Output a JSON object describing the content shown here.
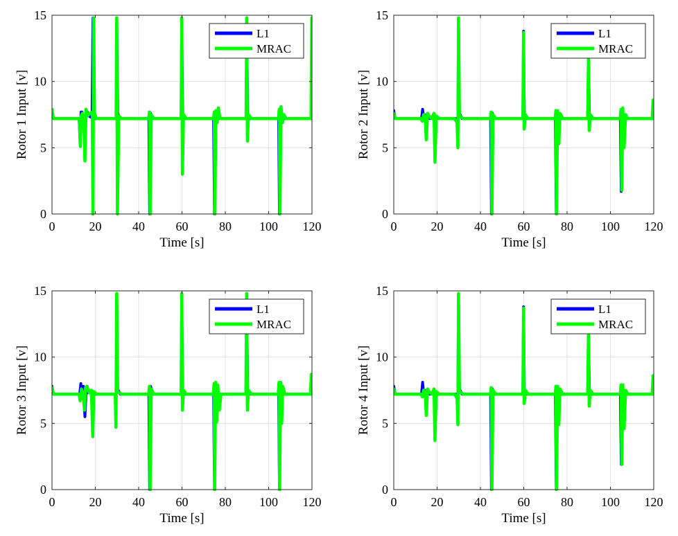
{
  "chart_data": [
    {
      "type": "line",
      "ylabel": "Rotor 1 Input [v]",
      "xlabel": "Time [s]",
      "xlim": [
        0,
        120
      ],
      "ylim": [
        0,
        15
      ],
      "xticks": [
        "0",
        "20",
        "40",
        "60",
        "80",
        "100",
        "120"
      ],
      "yticks": [
        "0",
        "5",
        "10",
        "15"
      ],
      "grid": true,
      "legend_position": "top-right",
      "series": [
        {
          "name": "L1",
          "color": "#0000ff",
          "x": [
            0,
            0.4,
            0.7,
            1.5,
            12.5,
            13.0,
            13.4,
            13.9,
            14.5,
            15.5,
            16.3,
            17.0,
            18.0,
            18.5,
            18.9,
            19.4,
            20.2,
            29.6,
            29.9,
            30.3,
            31.5,
            44.7,
            45.1,
            45.5,
            46.5,
            59.6,
            59.9,
            60.3,
            61.5,
            74.6,
            75.0,
            75.4,
            76.0,
            77.0,
            89.6,
            89.9,
            90.3,
            91.5,
            104.6,
            105.0,
            105.4,
            106.2,
            107.2,
            119.5,
            120
          ],
          "y": [
            7.7,
            7.4,
            7.2,
            7.2,
            7.2,
            5.3,
            7.7,
            7.7,
            6.9,
            7.3,
            7.7,
            7.4,
            7.3,
            7.8,
            14.8,
            7.2,
            7.2,
            7.2,
            14.8,
            7.6,
            7.2,
            7.2,
            0,
            7.6,
            7.2,
            7.2,
            14.8,
            7.6,
            7.2,
            7.2,
            0,
            7.7,
            7.3,
            7.2,
            7.2,
            14.8,
            7.6,
            7.2,
            7.2,
            0,
            7.7,
            7.3,
            7.2,
            7.2,
            7.2
          ]
        },
        {
          "name": "MRAC",
          "color": "#00ff00",
          "x": [
            0,
            0.4,
            0.7,
            1.5,
            12.6,
            13.1,
            13.5,
            14.0,
            14.7,
            15.2,
            15.7,
            16.4,
            17.5,
            18.6,
            18.9,
            19.2,
            19.6,
            20.5,
            22,
            29.6,
            29.9,
            30.2,
            30.8,
            32,
            44.6,
            45.0,
            45.3,
            45.8,
            47,
            59.6,
            59.9,
            60.2,
            60.7,
            62,
            74.6,
            74.9,
            75.2,
            75.6,
            76.3,
            76.8,
            77.5,
            89.6,
            89.9,
            90.2,
            90.7,
            92,
            104.6,
            104.9,
            105.2,
            105.7,
            106.4,
            107.0,
            108,
            119.6,
            119.9,
            120
          ],
          "y": [
            7.9,
            7.4,
            7.2,
            7.2,
            7.2,
            5.1,
            7.4,
            7.6,
            6.9,
            4.0,
            7.9,
            7.4,
            7.6,
            7.7,
            0,
            14.8,
            7.6,
            7.2,
            7.2,
            7.2,
            14.8,
            0,
            7.4,
            7.2,
            7.2,
            7.7,
            0,
            7.5,
            7.2,
            7.2,
            14.8,
            3.0,
            7.5,
            7.2,
            7.2,
            7.7,
            0,
            7.8,
            6.9,
            8.0,
            7.2,
            7.2,
            14.8,
            5.5,
            7.5,
            7.2,
            7.2,
            7.9,
            0,
            8.1,
            6.9,
            7.5,
            7.2,
            7.2,
            14.8,
            14.8
          ]
        }
      ]
    },
    {
      "type": "line",
      "ylabel": "Rotor 2 Input [v]",
      "xlabel": "Time [s]",
      "xlim": [
        0,
        120
      ],
      "ylim": [
        0,
        15
      ],
      "xticks": [
        "0",
        "20",
        "40",
        "60",
        "80",
        "100",
        "120"
      ],
      "yticks": [
        "0",
        "5",
        "10",
        "15"
      ],
      "grid": true,
      "legend_position": "top-right",
      "series": [
        {
          "name": "L1",
          "color": "#0000ff",
          "x": [
            0,
            0.4,
            0.7,
            1.5,
            12.8,
            13.3,
            13.8,
            14.3,
            15.0,
            16.5,
            18,
            29.6,
            29.9,
            30.3,
            31.5,
            44.7,
            45.1,
            45.5,
            46.5,
            59.6,
            59.9,
            60.3,
            61.5,
            74.6,
            75.0,
            75.4,
            76.5,
            89.6,
            89.9,
            90.3,
            91.5,
            104.6,
            105.0,
            105.4,
            106.5,
            119.5,
            120
          ],
          "y": [
            7.8,
            7.4,
            7.2,
            7.2,
            7.2,
            7.9,
            7.2,
            7.5,
            7.3,
            7.2,
            7.2,
            7.2,
            14.8,
            7.6,
            7.2,
            7.2,
            0,
            7.6,
            7.2,
            7.2,
            13.8,
            7.5,
            7.2,
            7.2,
            0,
            7.6,
            7.2,
            7.2,
            11.7,
            7.5,
            7.2,
            7.2,
            1.7,
            7.8,
            7.2,
            7.2,
            7.2
          ]
        },
        {
          "name": "MRAC",
          "color": "#00ff00",
          "x": [
            0,
            0.4,
            0.7,
            1.5,
            12.5,
            13.2,
            13.8,
            14.5,
            15.0,
            15.6,
            16.2,
            17.5,
            18.6,
            19.0,
            19.6,
            21,
            28,
            29.2,
            29.6,
            29.9,
            30.3,
            32,
            44.6,
            45.0,
            45.3,
            45.8,
            47,
            59.6,
            59.9,
            60.2,
            60.7,
            62,
            74.5,
            74.8,
            75.1,
            75.6,
            76.2,
            76.7,
            78,
            89.5,
            89.9,
            90.2,
            90.7,
            92,
            104.5,
            104.9,
            105.2,
            105.7,
            106.3,
            107.0,
            108,
            119.3,
            119.7,
            120
          ],
          "y": [
            7.6,
            7.3,
            7.2,
            7.2,
            7.2,
            7.0,
            7.5,
            7.4,
            5.6,
            7.6,
            7.4,
            7.2,
            7.6,
            3.9,
            7.4,
            7.2,
            7.2,
            6.9,
            5.0,
            14.8,
            7.4,
            7.2,
            7.2,
            7.7,
            0,
            7.5,
            7.2,
            7.2,
            13.7,
            6.4,
            7.5,
            7.2,
            7.2,
            7.8,
            0,
            7.8,
            5.3,
            7.6,
            7.2,
            7.2,
            11.7,
            6.3,
            7.5,
            7.2,
            7.2,
            7.9,
            1.8,
            8.0,
            5.0,
            7.5,
            7.2,
            7.2,
            8.6,
            7.2
          ]
        }
      ]
    },
    {
      "type": "line",
      "ylabel": "Rotor  3 Input [v]",
      "xlabel": "Time [s]",
      "xlim": [
        0,
        120
      ],
      "ylim": [
        0,
        15
      ],
      "xticks": [
        "0",
        "20",
        "40",
        "60",
        "80",
        "100",
        "120"
      ],
      "yticks": [
        "0",
        "5",
        "10",
        "15"
      ],
      "grid": true,
      "legend_position": "top-right",
      "series": [
        {
          "name": "L1",
          "color": "#0000ff",
          "x": [
            0,
            0.4,
            0.7,
            1.5,
            12.8,
            13.3,
            13.9,
            14.5,
            15.2,
            15.8,
            16.6,
            17.5,
            19,
            29.6,
            29.9,
            30.3,
            31.5,
            44.7,
            45.1,
            45.5,
            46.5,
            59.6,
            59.9,
            60.3,
            61.5,
            74.6,
            75.0,
            75.4,
            76.5,
            89.6,
            89.9,
            90.3,
            91.5,
            104.6,
            105.0,
            105.4,
            106.5,
            119.5,
            120
          ],
          "y": [
            7.8,
            7.4,
            7.2,
            7.2,
            7.2,
            8.0,
            6.9,
            7.8,
            5.5,
            7.6,
            7.3,
            7.4,
            7.2,
            7.2,
            14.8,
            7.6,
            7.2,
            7.2,
            0,
            7.8,
            7.2,
            7.2,
            14.8,
            7.5,
            7.2,
            7.2,
            0,
            7.8,
            7.2,
            7.2,
            14.8,
            7.5,
            7.2,
            7.2,
            0,
            7.9,
            7.2,
            7.2,
            8.6
          ]
        },
        {
          "name": "MRAC",
          "color": "#00ff00",
          "x": [
            0,
            0.4,
            0.7,
            1.5,
            12.5,
            13.0,
            13.6,
            14.3,
            15.0,
            15.5,
            16.2,
            17.2,
            18.2,
            18.8,
            19.3,
            20.5,
            29.2,
            29.5,
            29.9,
            30.3,
            32,
            44.6,
            45.0,
            45.3,
            45.8,
            47,
            59.6,
            59.9,
            60.2,
            60.7,
            62,
            74.5,
            74.8,
            75.1,
            75.5,
            76.0,
            76.5,
            77.2,
            78,
            89.5,
            89.9,
            90.2,
            90.7,
            92,
            104.4,
            104.8,
            105.1,
            105.5,
            106.0,
            106.5,
            107.5,
            119.3,
            119.7,
            120
          ],
          "y": [
            7.7,
            7.3,
            7.2,
            7.2,
            7.2,
            6.7,
            7.6,
            7.3,
            6.0,
            7.7,
            7.8,
            7.3,
            7.5,
            4.0,
            7.4,
            7.2,
            7.2,
            4.7,
            14.8,
            7.4,
            7.2,
            7.2,
            7.8,
            0,
            7.6,
            7.2,
            7.2,
            14.8,
            6.0,
            7.5,
            7.2,
            7.2,
            8.0,
            0,
            8.1,
            5.1,
            7.9,
            6.0,
            7.2,
            7.2,
            14.8,
            6.0,
            7.5,
            7.2,
            7.2,
            8.1,
            0,
            8.1,
            5.0,
            7.8,
            7.2,
            7.2,
            8.7,
            7.2
          ]
        }
      ]
    },
    {
      "type": "line",
      "ylabel": "Rotor 4 Input [v]",
      "xlabel": "Time [s]",
      "xlim": [
        0,
        120
      ],
      "ylim": [
        0,
        15
      ],
      "xticks": [
        "0",
        "20",
        "40",
        "60",
        "80",
        "100",
        "120"
      ],
      "yticks": [
        "0",
        "5",
        "10",
        "15"
      ],
      "grid": true,
      "legend_position": "top-right",
      "series": [
        {
          "name": "L1",
          "color": "#0000ff",
          "x": [
            0,
            0.4,
            0.7,
            1.5,
            12.8,
            13.3,
            13.8,
            14.3,
            15.0,
            16.5,
            18,
            29.6,
            29.9,
            30.3,
            31.5,
            44.7,
            45.1,
            45.5,
            46.5,
            59.6,
            59.9,
            60.3,
            61.5,
            74.6,
            75.0,
            75.4,
            76.5,
            89.6,
            89.9,
            90.3,
            91.5,
            104.6,
            105.0,
            105.4,
            106.5,
            119.5,
            120
          ],
          "y": [
            7.8,
            7.4,
            7.2,
            7.2,
            7.2,
            8.1,
            7.2,
            7.5,
            7.3,
            7.2,
            7.2,
            7.2,
            14.8,
            7.6,
            7.2,
            7.2,
            0,
            7.6,
            7.2,
            7.2,
            13.8,
            7.5,
            7.2,
            7.2,
            0,
            7.6,
            7.2,
            7.2,
            11.8,
            7.5,
            7.2,
            7.2,
            1.9,
            7.8,
            7.2,
            7.2,
            8.6
          ]
        },
        {
          "name": "MRAC",
          "color": "#00ff00",
          "x": [
            0,
            0.4,
            0.7,
            1.5,
            12.5,
            13.2,
            13.8,
            14.5,
            15.0,
            15.6,
            16.2,
            17.5,
            18.6,
            19.0,
            19.6,
            21,
            28,
            29.2,
            29.6,
            29.9,
            30.3,
            32,
            44.6,
            45.0,
            45.3,
            45.8,
            47,
            59.6,
            59.9,
            60.2,
            60.7,
            62,
            74.5,
            74.8,
            75.1,
            75.6,
            76.2,
            76.7,
            78,
            89.5,
            89.9,
            90.2,
            90.7,
            92,
            104.5,
            104.9,
            105.2,
            105.7,
            106.3,
            107.0,
            108,
            119.3,
            119.7,
            120
          ],
          "y": [
            7.6,
            7.3,
            7.2,
            7.2,
            7.2,
            7.0,
            7.5,
            7.4,
            5.6,
            7.6,
            7.4,
            7.2,
            7.6,
            3.7,
            7.4,
            7.2,
            7.2,
            6.9,
            4.9,
            14.8,
            7.4,
            7.2,
            7.2,
            7.7,
            0,
            7.5,
            7.2,
            7.2,
            13.7,
            6.5,
            7.5,
            7.2,
            7.2,
            7.8,
            0,
            7.8,
            4.9,
            7.6,
            7.2,
            7.2,
            11.7,
            6.3,
            7.5,
            7.2,
            7.2,
            7.9,
            1.9,
            7.9,
            4.6,
            7.5,
            7.2,
            7.2,
            8.6,
            7.2
          ]
        }
      ]
    }
  ]
}
